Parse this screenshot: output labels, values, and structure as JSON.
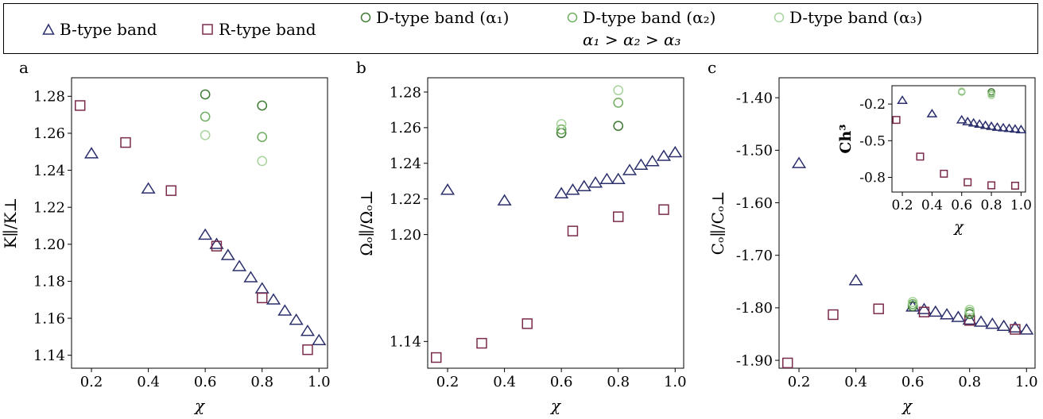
{
  "legend": {
    "b_label": "B-type band",
    "r_label": "R-type band",
    "d1_label": "D-type band (α₁)",
    "d2_label": "D-type band (α₂)",
    "d3_label": "D-type band (α₃)",
    "order_note": "α₁ > α₂ > α₃"
  },
  "colors": {
    "b_type": "#2b2f6b",
    "r_type": "#7a2a4a",
    "d1": "#3f7a34",
    "d2": "#6fae5f",
    "d3": "#a8d49c"
  },
  "chart_data": [
    {
      "type": "scatter",
      "panel_label": "a",
      "xlabel": "χ",
      "ylabel": "K∥/K⊥",
      "xlim": [
        0.13,
        1.03
      ],
      "ylim": [
        1.133,
        1.29
      ],
      "xticks": [
        0.2,
        0.4,
        0.6,
        0.8,
        1.0
      ],
      "xtick_labels": [
        "0.2",
        "0.4",
        "0.6",
        "0.8",
        "1.0"
      ],
      "yticks": [
        1.14,
        1.16,
        1.18,
        1.2,
        1.22,
        1.24,
        1.26,
        1.28
      ],
      "ytick_labels": [
        "1.14",
        "1.16",
        "1.18",
        "1.20",
        "1.22",
        "1.24",
        "1.26",
        "1.28"
      ],
      "series": [
        {
          "name": "B-type band",
          "marker": "triangle",
          "color": "#2b2f6b",
          "x": [
            0.2,
            0.4,
            0.6,
            0.64,
            0.68,
            0.72,
            0.76,
            0.8,
            0.84,
            0.88,
            0.92,
            0.96,
            1.0
          ],
          "y": [
            1.249,
            1.23,
            1.205,
            1.2,
            1.194,
            1.188,
            1.182,
            1.176,
            1.17,
            1.164,
            1.159,
            1.153,
            1.148
          ]
        },
        {
          "name": "R-type band",
          "marker": "square",
          "color": "#7a2a4a",
          "x": [
            0.16,
            0.32,
            0.48,
            0.64,
            0.8,
            0.96
          ],
          "y": [
            1.275,
            1.255,
            1.229,
            1.199,
            1.171,
            1.143
          ]
        },
        {
          "name": "D-type band (α₁)",
          "marker": "circle",
          "color": "#3f7a34",
          "x": [
            0.6,
            0.8
          ],
          "y": [
            1.281,
            1.275
          ]
        },
        {
          "name": "D-type band (α₂)",
          "marker": "circle",
          "color": "#6fae5f",
          "x": [
            0.6,
            0.8
          ],
          "y": [
            1.269,
            1.258
          ]
        },
        {
          "name": "D-type band (α₃)",
          "marker": "circle",
          "color": "#a8d49c",
          "x": [
            0.6,
            0.8
          ],
          "y": [
            1.259,
            1.245
          ]
        }
      ]
    },
    {
      "type": "scatter",
      "panel_label": "b",
      "xlabel": "χ",
      "ylabel": "Ωₒ∥/Ωₒ⊥",
      "xlim": [
        0.13,
        1.03
      ],
      "ylim": [
        1.125,
        1.288
      ],
      "xticks": [
        0.2,
        0.4,
        0.6,
        0.8,
        1.0
      ],
      "xtick_labels": [
        "0.2",
        "0.4",
        "0.6",
        "0.8",
        "1.0"
      ],
      "yticks": [
        1.14,
        1.2,
        1.22,
        1.24,
        1.26,
        1.28
      ],
      "ytick_labels": [
        "1.14",
        "1.20",
        "1.22",
        "1.24",
        "1.26",
        "1.28"
      ],
      "series": [
        {
          "name": "B-type band",
          "marker": "triangle",
          "color": "#2b2f6b",
          "x": [
            0.2,
            0.4,
            0.6,
            0.64,
            0.68,
            0.72,
            0.76,
            0.8,
            0.84,
            0.88,
            0.92,
            0.96,
            1.0
          ],
          "y": [
            1.225,
            1.219,
            1.223,
            1.225,
            1.227,
            1.229,
            1.231,
            1.231,
            1.236,
            1.239,
            1.241,
            1.244,
            1.246
          ]
        },
        {
          "name": "R-type band",
          "marker": "square",
          "color": "#7a2a4a",
          "x": [
            0.16,
            0.32,
            0.48,
            0.64,
            0.8,
            0.96
          ],
          "y": [
            1.131,
            1.139,
            1.15,
            1.202,
            1.21,
            1.214
          ]
        },
        {
          "name": "D-type band (α₁)",
          "marker": "circle",
          "color": "#3f7a34",
          "x": [
            0.6,
            0.8
          ],
          "y": [
            1.257,
            1.261
          ]
        },
        {
          "name": "D-type band (α₂)",
          "marker": "circle",
          "color": "#6fae5f",
          "x": [
            0.6,
            0.8
          ],
          "y": [
            1.259,
            1.274
          ]
        },
        {
          "name": "D-type band (α₃)",
          "marker": "circle",
          "color": "#a8d49c",
          "x": [
            0.6,
            0.8
          ],
          "y": [
            1.262,
            1.281
          ]
        }
      ]
    },
    {
      "type": "scatter",
      "panel_label": "c",
      "xlabel": "χ",
      "ylabel": "Cₒ∥/Cₒ⊥",
      "xlim": [
        0.13,
        1.03
      ],
      "ylim": [
        -1.915,
        -1.362
      ],
      "xticks": [
        0.2,
        0.4,
        0.6,
        0.8,
        1.0
      ],
      "xtick_labels": [
        "0.2",
        "0.4",
        "0.6",
        "0.8",
        "1.0"
      ],
      "yticks": [
        -1.4,
        -1.5,
        -1.6,
        -1.7,
        -1.8,
        -1.9
      ],
      "ytick_labels": [
        "-1.40",
        "-1.50",
        "-1.60",
        "-1.70",
        "-1.80",
        "-1.90"
      ],
      "series": [
        {
          "name": "B-type band",
          "marker": "triangle",
          "color": "#2b2f6b",
          "x": [
            0.2,
            0.4,
            0.6,
            0.64,
            0.68,
            0.72,
            0.76,
            0.8,
            0.84,
            0.88,
            0.92,
            0.96,
            1.0
          ],
          "y": [
            -1.525,
            -1.748,
            -1.798,
            -1.803,
            -1.808,
            -1.813,
            -1.818,
            -1.823,
            -1.827,
            -1.831,
            -1.835,
            -1.838,
            -1.842
          ]
        },
        {
          "name": "R-type band",
          "marker": "square",
          "color": "#7a2a4a",
          "x": [
            0.16,
            0.32,
            0.48,
            0.64,
            0.8,
            0.96
          ],
          "y": [
            -1.905,
            -1.813,
            -1.802,
            -1.808,
            -1.824,
            -1.841
          ]
        },
        {
          "name": "D-type band (α₁)",
          "marker": "circle",
          "color": "#3f7a34",
          "x": [
            0.6,
            0.8
          ],
          "y": [
            -1.797,
            -1.812
          ]
        },
        {
          "name": "D-type band (α₂)",
          "marker": "circle",
          "color": "#6fae5f",
          "x": [
            0.6,
            0.8
          ],
          "y": [
            -1.793,
            -1.808
          ]
        },
        {
          "name": "D-type band (α₃)",
          "marker": "circle",
          "color": "#a8d49c",
          "x": [
            0.6,
            0.8
          ],
          "y": [
            -1.789,
            -1.804
          ]
        }
      ],
      "inset": {
        "type": "scatter",
        "xlabel": "χ",
        "ylabel": "Ch³",
        "xlim": [
          0.13,
          1.03
        ],
        "ylim": [
          -0.92,
          -0.05
        ],
        "xticks": [
          0.2,
          0.4,
          0.6,
          0.8,
          1.0
        ],
        "xtick_labels": [
          "0.2",
          "0.4",
          "0.6",
          "0.8",
          "1.0"
        ],
        "yticks": [
          -0.2,
          -0.5,
          -0.8
        ],
        "ytick_labels": [
          "-0.2",
          "-0.5",
          "-0.8"
        ],
        "series": [
          {
            "name": "B-type band",
            "marker": "triangle",
            "color": "#2b2f6b",
            "x": [
              0.2,
              0.4,
              0.6,
              0.64,
              0.68,
              0.72,
              0.76,
              0.8,
              0.84,
              0.88,
              0.92,
              0.96,
              1.0
            ],
            "y": [
              -0.17,
              -0.28,
              -0.33,
              -0.345,
              -0.355,
              -0.365,
              -0.375,
              -0.383,
              -0.39,
              -0.395,
              -0.4,
              -0.405,
              -0.41
            ]
          },
          {
            "name": "R-type band",
            "marker": "square",
            "color": "#7a2a4a",
            "x": [
              0.16,
              0.32,
              0.48,
              0.64,
              0.8,
              0.96
            ],
            "y": [
              -0.33,
              -0.63,
              -0.77,
              -0.84,
              -0.865,
              -0.868
            ]
          },
          {
            "name": "D-type band (α₁)",
            "marker": "circle",
            "color": "#3f7a34",
            "x": [
              0.6,
              0.8
            ],
            "y": [
              -0.1,
              -0.1
            ]
          },
          {
            "name": "D-type band (α₂)",
            "marker": "circle",
            "color": "#6fae5f",
            "x": [
              0.6,
              0.8
            ],
            "y": [
              -0.1,
              -0.115
            ]
          },
          {
            "name": "D-type band (α₃)",
            "marker": "circle",
            "color": "#a8d49c",
            "x": [
              0.6,
              0.8
            ],
            "y": [
              -0.095,
              -0.13
            ]
          }
        ]
      }
    }
  ]
}
